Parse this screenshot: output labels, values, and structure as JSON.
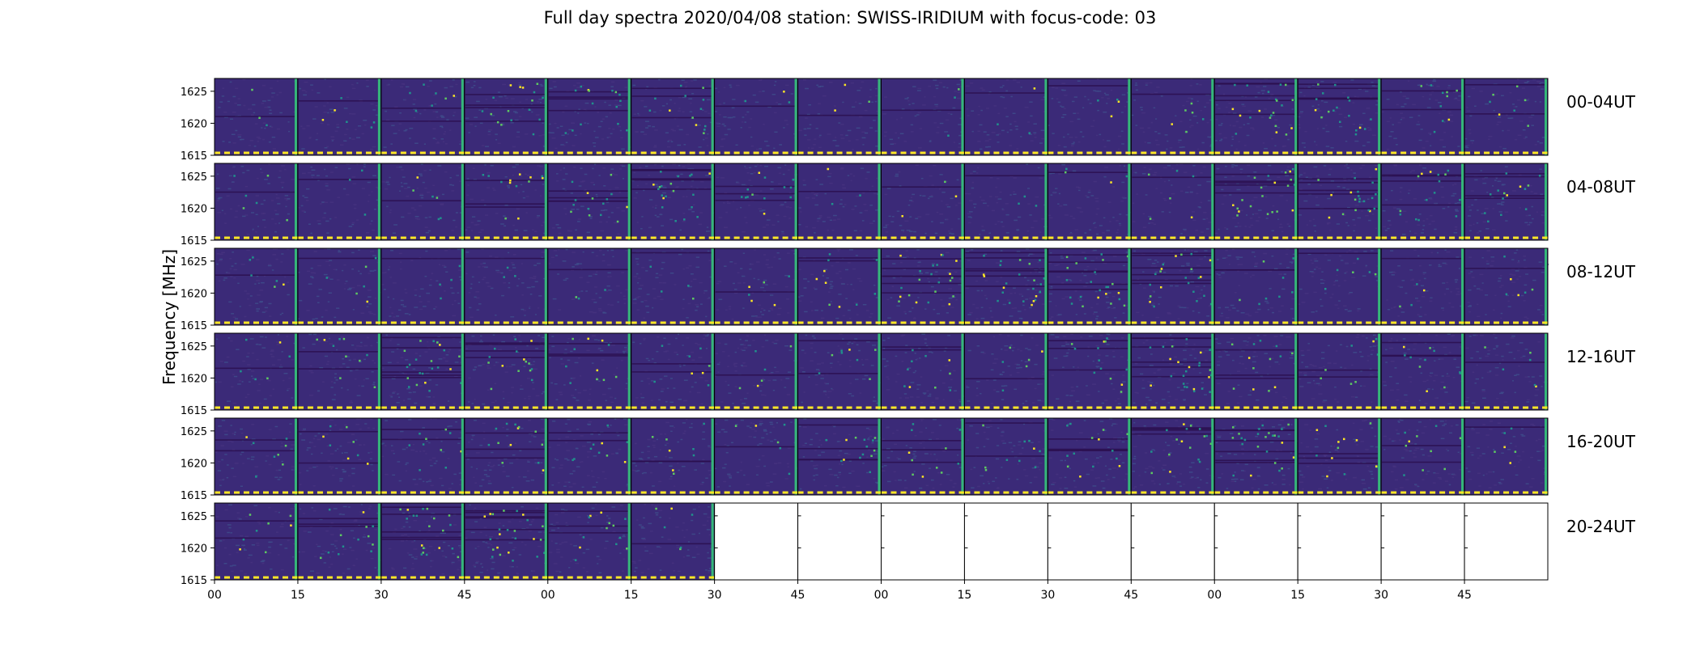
{
  "chart_data": {
    "type": "heatmap",
    "title": "Full day spectra 2020/04/08 station: SWISS-IRIDIUM with focus-code: 03",
    "ylabel": "Frequency [MHz]",
    "xlabel": "",
    "y_ticks": [
      "1615",
      "1620",
      "1625"
    ],
    "ylim": [
      1615,
      1627
    ],
    "x_tick_labels": [
      "00",
      "15",
      "30",
      "45",
      "00",
      "15",
      "30",
      "45",
      "00",
      "15",
      "30",
      "45",
      "00",
      "15",
      "30",
      "45"
    ],
    "panels_per_row": 16,
    "minutes_per_panel": 15,
    "colormap": "viridis",
    "rows": [
      {
        "label": "00-04UT",
        "filled_panels": 16,
        "activity": [
          0.1,
          0.2,
          0.25,
          0.6,
          0.55,
          0.45,
          0.1,
          0.1,
          0.1,
          0.1,
          0.15,
          0.2,
          0.75,
          0.65,
          0.35,
          0.25
        ]
      },
      {
        "label": "04-08UT",
        "filled_panels": 16,
        "activity": [
          0.2,
          0.1,
          0.2,
          0.45,
          0.55,
          0.7,
          0.45,
          0.1,
          0.1,
          0.1,
          0.15,
          0.2,
          0.75,
          0.7,
          0.55,
          0.5
        ]
      },
      {
        "label": "08-12UT",
        "filled_panels": 16,
        "activity": [
          0.2,
          0.2,
          0.15,
          0.1,
          0.1,
          0.15,
          0.2,
          0.35,
          0.8,
          0.85,
          0.85,
          0.8,
          0.3,
          0.2,
          0.15,
          0.2
        ]
      },
      {
        "label": "12-16UT",
        "filled_panels": 16,
        "activity": [
          0.2,
          0.35,
          0.8,
          0.55,
          0.4,
          0.3,
          0.2,
          0.3,
          0.35,
          0.2,
          0.45,
          0.9,
          0.45,
          0.3,
          0.4,
          0.2
        ]
      },
      {
        "label": "16-20UT",
        "filled_panels": 16,
        "activity": [
          0.3,
          0.3,
          0.35,
          0.45,
          0.35,
          0.3,
          0.2,
          0.5,
          0.4,
          0.35,
          0.5,
          0.6,
          0.9,
          0.45,
          0.35,
          0.2
        ]
      },
      {
        "label": "20-24UT",
        "filled_panels": 6,
        "activity": [
          0.3,
          0.45,
          0.7,
          0.85,
          0.45,
          0.2,
          0,
          0,
          0,
          0,
          0,
          0,
          0,
          0,
          0,
          0
        ]
      }
    ],
    "colors": {
      "background": "#3b2a78",
      "noise_a": "#46327e",
      "noise_b": "#3e4a89",
      "line_dark": "#2b0f4f",
      "mid": "#21918c",
      "bright": "#5ec962",
      "peak": "#fde725",
      "edge": "#35b779"
    }
  }
}
